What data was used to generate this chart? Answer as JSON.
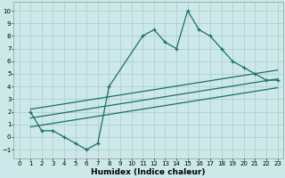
{
  "title": "",
  "xlabel": "Humidex (Indice chaleur)",
  "bg_color": "#cce8e8",
  "line_color": "#1a6e6a",
  "xlim": [
    -0.5,
    23.5
  ],
  "ylim": [
    -1.7,
    10.7
  ],
  "xticks": [
    0,
    1,
    2,
    3,
    4,
    5,
    6,
    7,
    8,
    9,
    10,
    11,
    12,
    13,
    14,
    15,
    16,
    17,
    18,
    19,
    20,
    21,
    22,
    23
  ],
  "yticks": [
    -1,
    0,
    1,
    2,
    3,
    4,
    5,
    6,
    7,
    8,
    9,
    10
  ],
  "curve1_x": [
    1,
    2,
    3,
    4,
    5,
    6,
    7,
    8,
    11,
    12,
    13,
    14,
    15,
    16,
    17,
    18,
    19,
    20,
    21,
    22,
    23
  ],
  "curve1_y": [
    2,
    0.5,
    0.5,
    0,
    -0.5,
    -1,
    -0.5,
    4,
    8,
    8.5,
    7.5,
    7,
    10,
    8.5,
    8,
    7,
    6,
    5.5,
    5,
    4.5,
    4.5
  ],
  "line1_x": [
    1,
    23
  ],
  "line1_y": [
    1.5,
    4.6
  ],
  "line2_x": [
    1,
    23
  ],
  "line2_y": [
    2.2,
    5.3
  ],
  "line3_x": [
    1,
    23
  ],
  "line3_y": [
    0.8,
    3.9
  ],
  "grid_color": "#aacccc",
  "xlabel_fontsize": 6.5,
  "tick_fontsize": 5.0
}
